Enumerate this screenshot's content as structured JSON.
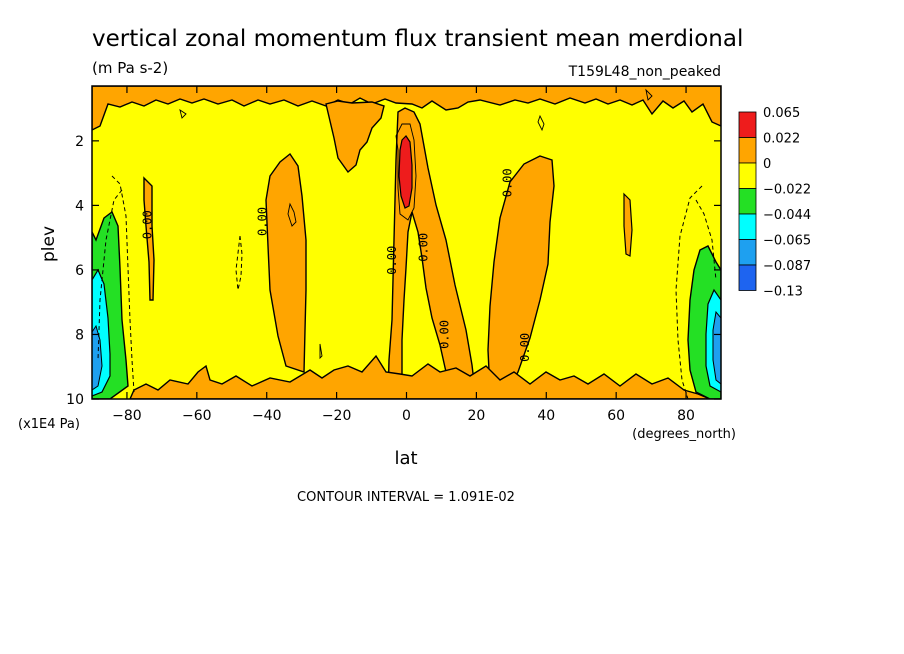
{
  "chart_data": {
    "type": "heatmap",
    "title": "vertical zonal momentum flux transient mean merdional",
    "units": "(m Pa s-2)",
    "dataset": "T159L48_non_peaked",
    "xlabel": "lat",
    "xunits": "(degrees_north)",
    "ylabel": "plev",
    "yunits": "(x1E4 Pa)",
    "xlim": [
      -90,
      90
    ],
    "ylim": [
      10,
      0.3
    ],
    "x_ticks": [
      -80,
      -60,
      -40,
      -20,
      0,
      20,
      40,
      60,
      80
    ],
    "y_ticks": [
      2,
      4,
      6,
      8,
      10
    ],
    "contour_interval_text": "CONTOUR INTERVAL = 1.091E-02",
    "colorbar": {
      "levels": [
        "0.065",
        "0.022",
        "0",
        "-0.022",
        "-0.044",
        "-0.065",
        "-0.087",
        "-0.13"
      ],
      "colors": [
        "#ee1c1c",
        "#ffa500",
        "#ffff00",
        "#24e024",
        "#00ffff",
        "#1ea0f0",
        "#1e64f0"
      ]
    },
    "contour_labels": [
      {
        "text": "0.00",
        "lat": -73,
        "plev": 4.6
      },
      {
        "text": "0.00",
        "lat": -40,
        "plev": 4.5
      },
      {
        "text": "0.00",
        "lat": -3,
        "plev": 5.7
      },
      {
        "text": "0.00",
        "lat": 6,
        "plev": 5.3
      },
      {
        "text": "0.00",
        "lat": 30,
        "plev": 3.3
      },
      {
        "text": "0.00",
        "lat": 12,
        "plev": 8
      },
      {
        "text": "0.00",
        "lat": 35,
        "plev": 8.4
      }
    ],
    "features": [
      {
        "name": "equatorial maximum",
        "lat": 0,
        "plev_range": [
          1.5,
          3.8
        ],
        "max_value": 0.065
      },
      {
        "name": "south polar minimum",
        "lat": -87,
        "plev_range": [
          4.5,
          10
        ],
        "min_value": -0.13
      },
      {
        "name": "north polar minimum",
        "lat": 87,
        "plev_range": [
          5.5,
          10
        ],
        "min_value": -0.087
      }
    ]
  }
}
